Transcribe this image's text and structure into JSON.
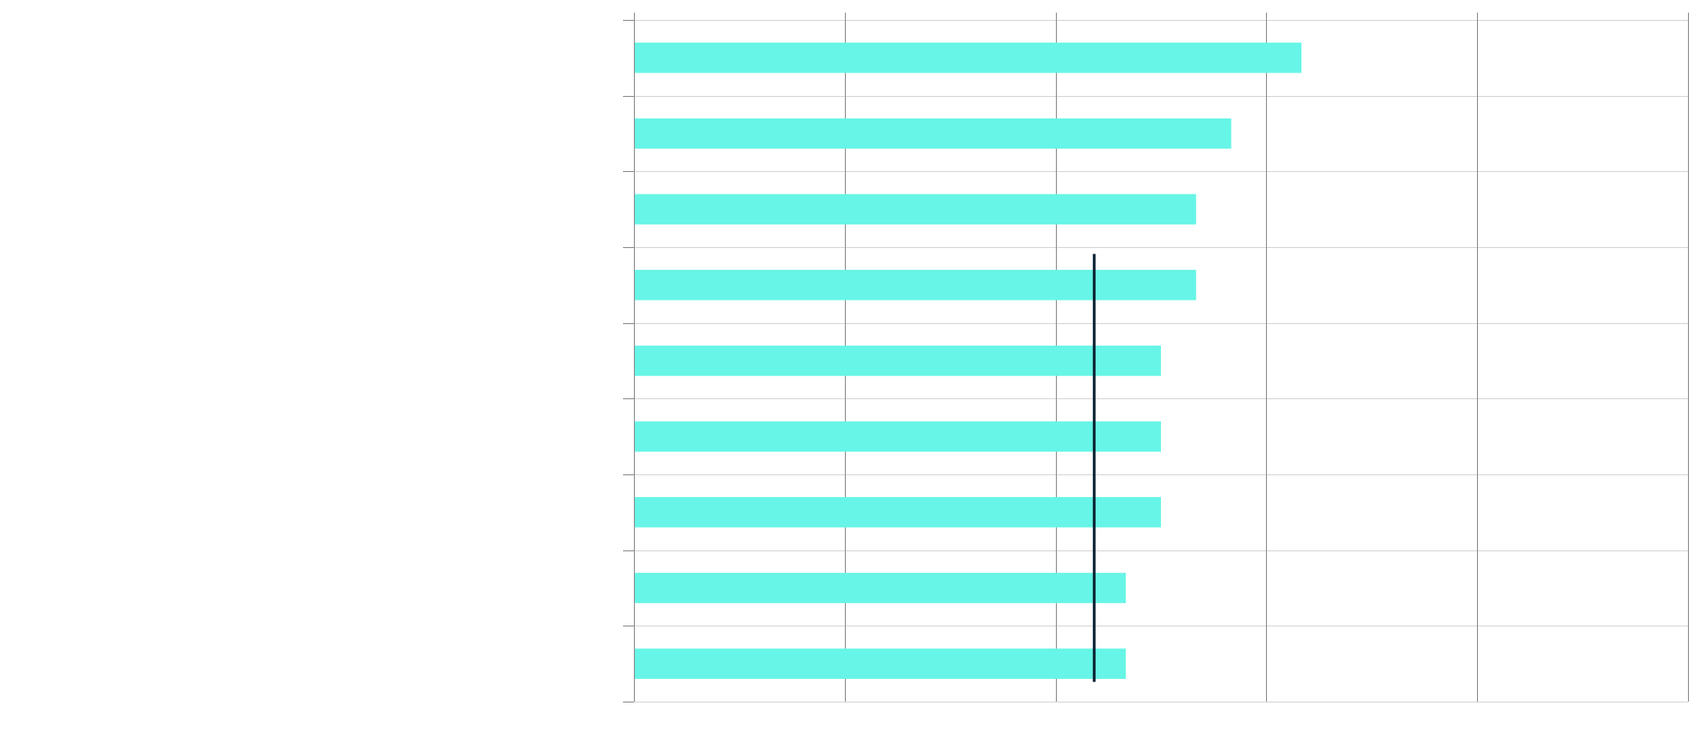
{
  "chart_data": {
    "type": "bar",
    "orientation": "horizontal",
    "title": "",
    "xlabel": "",
    "ylabel": "",
    "categories": [
      "",
      "",
      "",
      "",
      "",
      "",
      "",
      "",
      ""
    ],
    "values": [
      19.0,
      17.0,
      16.0,
      16.0,
      15.0,
      15.0,
      15.0,
      14.0,
      14.0
    ],
    "xlim": [
      0,
      30
    ],
    "x_gridlines": [
      0,
      6,
      12,
      18,
      24,
      30
    ],
    "tick_labels_visible": false,
    "reference_line": {
      "value": 13.1,
      "from_category_index": 3,
      "to_category_index": 8
    },
    "grid": true,
    "legend": "none",
    "colors": {
      "bar": "#66f5e6",
      "reference_line": "#0b2233",
      "vertical_grid": "#8c8c8c",
      "horizontal_grid": "#d6d6d6",
      "axis": "#8c8c8c"
    }
  }
}
